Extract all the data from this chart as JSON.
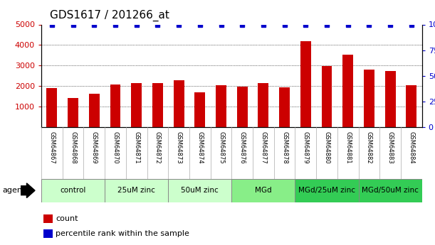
{
  "title": "GDS1617 / 201266_at",
  "samples": [
    "GSM64867",
    "GSM64868",
    "GSM64869",
    "GSM64870",
    "GSM64871",
    "GSM64872",
    "GSM64873",
    "GSM64874",
    "GSM64875",
    "GSM64876",
    "GSM64877",
    "GSM64878",
    "GSM64879",
    "GSM64880",
    "GSM64881",
    "GSM64882",
    "GSM64883",
    "GSM64884"
  ],
  "counts": [
    1900,
    1430,
    1620,
    2080,
    2140,
    2140,
    2300,
    1720,
    2060,
    1970,
    2170,
    1960,
    4180,
    2970,
    3540,
    2820,
    2730,
    2050
  ],
  "percentiles": [
    100,
    100,
    100,
    100,
    100,
    100,
    100,
    100,
    100,
    100,
    100,
    100,
    100,
    100,
    100,
    100,
    100,
    100
  ],
  "bar_color": "#cc0000",
  "percentile_color": "#0000cc",
  "ylim_left": [
    0,
    5000
  ],
  "ylim_right": [
    0,
    100
  ],
  "yticks_left": [
    1000,
    2000,
    3000,
    4000,
    5000
  ],
  "yticks_right": [
    0,
    25,
    50,
    75,
    100
  ],
  "groups": [
    {
      "label": "control",
      "start": 0,
      "end": 3,
      "color": "#ccffcc"
    },
    {
      "label": "25uM zinc",
      "start": 3,
      "end": 6,
      "color": "#ccffcc"
    },
    {
      "label": "50uM zinc",
      "start": 6,
      "end": 9,
      "color": "#ccffcc"
    },
    {
      "label": "MGd",
      "start": 9,
      "end": 12,
      "color": "#88ee88"
    },
    {
      "label": "MGd/25uM zinc",
      "start": 12,
      "end": 15,
      "color": "#33cc55"
    },
    {
      "label": "MGd/50uM zinc",
      "start": 15,
      "end": 18,
      "color": "#33cc55"
    }
  ],
  "sample_bg_color": "#dddddd",
  "agent_label": "agent",
  "legend_count_label": "count",
  "legend_percentile_label": "percentile rank within the sample",
  "bg_color": "#ffffff",
  "plot_bg_color": "#ffffff",
  "tick_label_color_left": "#cc0000",
  "tick_label_color_right": "#0000cc",
  "title_color": "#000000",
  "title_fontsize": 11,
  "bar_width": 0.5
}
